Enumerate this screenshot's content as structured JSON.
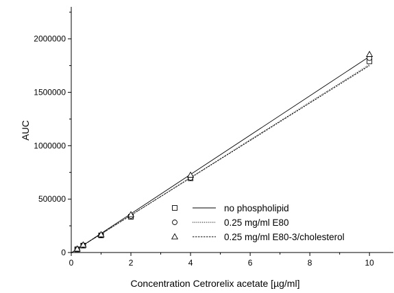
{
  "chart_data": {
    "type": "scatter",
    "title": "",
    "xlabel": "Concentration Cetrorelix acetate [µg/ml]",
    "ylabel": "AUC",
    "xlim": [
      0,
      10.8
    ],
    "ylim": [
      0,
      2300000
    ],
    "x_ticks": [
      0,
      2,
      4,
      6,
      8,
      10
    ],
    "x_tick_labels": [
      "0",
      "2",
      "4",
      "6",
      "8",
      "10"
    ],
    "y_ticks": [
      0,
      500000,
      1000000,
      1500000,
      2000000
    ],
    "y_tick_labels": [
      "0",
      "500000",
      "1000000",
      "1500000",
      "2000000"
    ],
    "grid": false,
    "legend_position": "bottom-right",
    "series": [
      {
        "name": "no phospholipid",
        "marker": "square",
        "line_style": "solid",
        "points": [
          {
            "x": 0.2,
            "y": 30000
          },
          {
            "x": 0.4,
            "y": 65000
          },
          {
            "x": 1,
            "y": 160000
          },
          {
            "x": 2,
            "y": 335000
          },
          {
            "x": 4,
            "y": 695000
          },
          {
            "x": 10,
            "y": 1790000
          }
        ],
        "fit_line": [
          [
            0,
            -5000
          ],
          [
            10,
            1835000
          ]
        ]
      },
      {
        "name": "0.25 mg/ml E80",
        "marker": "circle",
        "line_style": "dotted",
        "points": [
          {
            "x": 0.2,
            "y": 32000
          },
          {
            "x": 0.4,
            "y": 68000
          },
          {
            "x": 1,
            "y": 163000
          },
          {
            "x": 2,
            "y": 340000
          },
          {
            "x": 4,
            "y": 700000
          },
          {
            "x": 10,
            "y": 1820000
          }
        ],
        "fit_line": [
          [
            0,
            -3000
          ],
          [
            10,
            1760000
          ]
        ]
      },
      {
        "name": "0.25 mg/ml E80-3/cholesterol",
        "marker": "triangle",
        "line_style": "dashed",
        "points": [
          {
            "x": 0.2,
            "y": 34000
          },
          {
            "x": 0.4,
            "y": 72000
          },
          {
            "x": 1,
            "y": 168000
          },
          {
            "x": 2,
            "y": 355000
          },
          {
            "x": 4,
            "y": 725000
          },
          {
            "x": 10,
            "y": 1855000
          }
        ],
        "fit_line": [
          [
            0,
            -2000
          ],
          [
            10,
            1750000
          ]
        ]
      }
    ]
  }
}
